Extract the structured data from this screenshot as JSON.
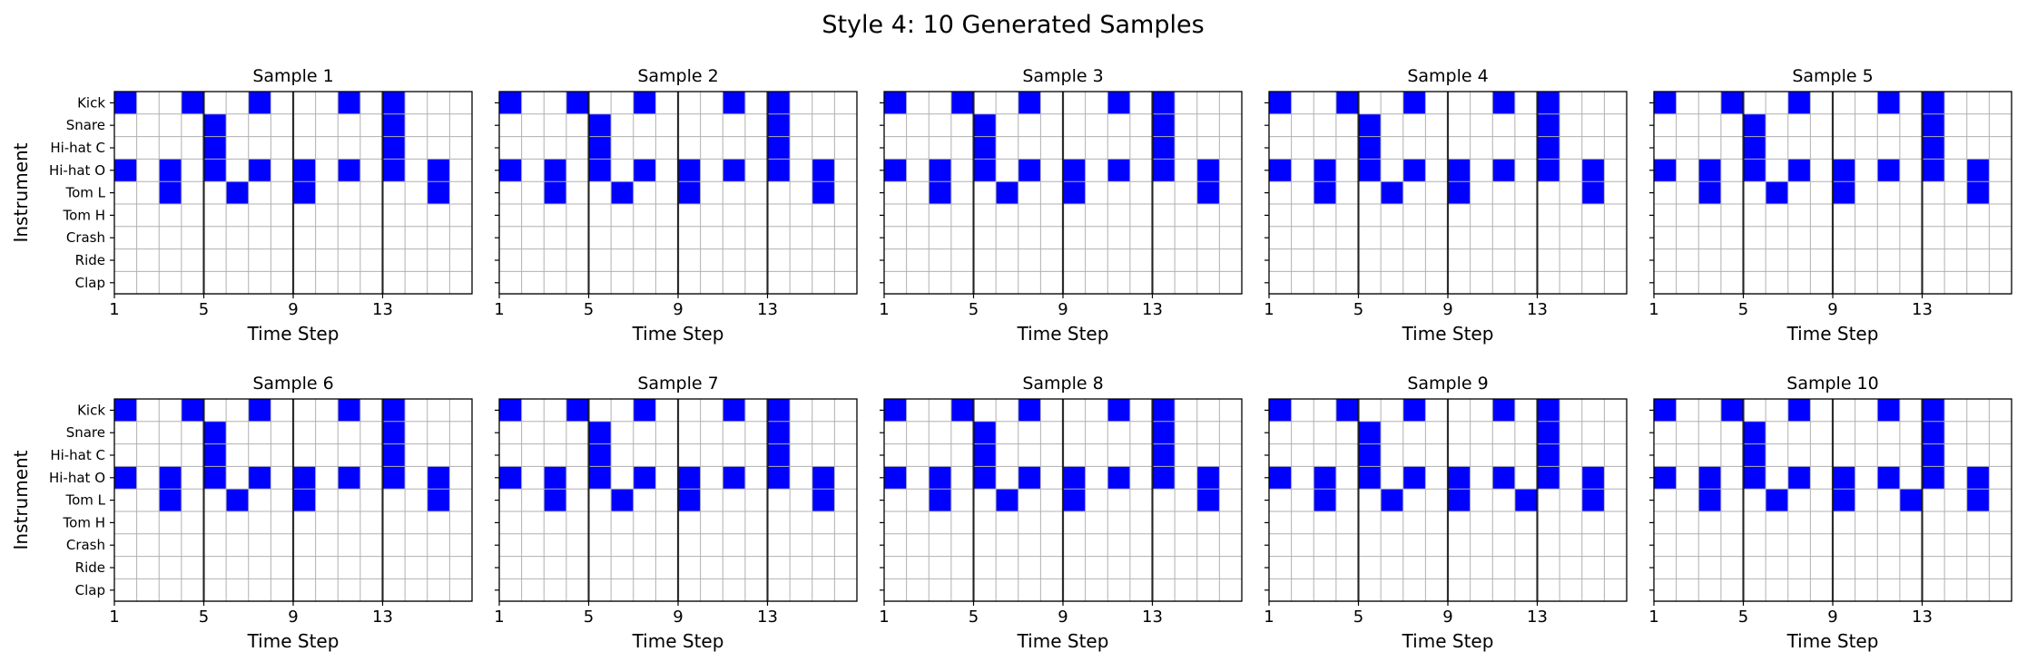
{
  "figure_title": "Style 4: 10 Generated Samples",
  "chart_data": {
    "type": "heatmap",
    "instruments": [
      "Kick",
      "Snare",
      "Hi-hat C",
      "Hi-hat O",
      "Tom L",
      "Tom H",
      "Crash",
      "Ride",
      "Clap"
    ],
    "x_ticks": [
      "1",
      "5",
      "9",
      "13"
    ],
    "steps": 16,
    "xlabel": "Time Step",
    "ylabel": "Instrument",
    "grid": true,
    "active_color": "#0000ff",
    "divider_steps": [
      5,
      9,
      13
    ],
    "note": "hits are [step, instrument_index]; step 1-16, instrument index 0=Kick .. 8=Clap",
    "samples": [
      {
        "title": "Sample 1",
        "hits": [
          [
            1,
            0
          ],
          [
            4,
            0
          ],
          [
            7,
            0
          ],
          [
            11,
            0
          ],
          [
            13,
            0
          ],
          [
            5,
            1
          ],
          [
            13,
            1
          ],
          [
            5,
            2
          ],
          [
            13,
            2
          ],
          [
            1,
            3
          ],
          [
            3,
            3
          ],
          [
            5,
            3
          ],
          [
            7,
            3
          ],
          [
            9,
            3
          ],
          [
            11,
            3
          ],
          [
            13,
            3
          ],
          [
            15,
            3
          ],
          [
            3,
            4
          ],
          [
            6,
            4
          ],
          [
            9,
            4
          ],
          [
            15,
            4
          ]
        ]
      },
      {
        "title": "Sample 2",
        "hits": [
          [
            1,
            0
          ],
          [
            4,
            0
          ],
          [
            7,
            0
          ],
          [
            11,
            0
          ],
          [
            13,
            0
          ],
          [
            5,
            1
          ],
          [
            13,
            1
          ],
          [
            5,
            2
          ],
          [
            13,
            2
          ],
          [
            1,
            3
          ],
          [
            3,
            3
          ],
          [
            5,
            3
          ],
          [
            7,
            3
          ],
          [
            9,
            3
          ],
          [
            11,
            3
          ],
          [
            13,
            3
          ],
          [
            15,
            3
          ],
          [
            3,
            4
          ],
          [
            6,
            4
          ],
          [
            9,
            4
          ],
          [
            15,
            4
          ]
        ]
      },
      {
        "title": "Sample 3",
        "hits": [
          [
            1,
            0
          ],
          [
            4,
            0
          ],
          [
            7,
            0
          ],
          [
            11,
            0
          ],
          [
            13,
            0
          ],
          [
            5,
            1
          ],
          [
            13,
            1
          ],
          [
            5,
            2
          ],
          [
            13,
            2
          ],
          [
            1,
            3
          ],
          [
            3,
            3
          ],
          [
            5,
            3
          ],
          [
            7,
            3
          ],
          [
            9,
            3
          ],
          [
            11,
            3
          ],
          [
            13,
            3
          ],
          [
            15,
            3
          ],
          [
            3,
            4
          ],
          [
            6,
            4
          ],
          [
            9,
            4
          ],
          [
            15,
            4
          ]
        ]
      },
      {
        "title": "Sample 4",
        "hits": [
          [
            1,
            0
          ],
          [
            4,
            0
          ],
          [
            7,
            0
          ],
          [
            11,
            0
          ],
          [
            13,
            0
          ],
          [
            5,
            1
          ],
          [
            13,
            1
          ],
          [
            5,
            2
          ],
          [
            13,
            2
          ],
          [
            1,
            3
          ],
          [
            3,
            3
          ],
          [
            5,
            3
          ],
          [
            7,
            3
          ],
          [
            9,
            3
          ],
          [
            11,
            3
          ],
          [
            13,
            3
          ],
          [
            15,
            3
          ],
          [
            3,
            4
          ],
          [
            6,
            4
          ],
          [
            9,
            4
          ],
          [
            15,
            4
          ]
        ]
      },
      {
        "title": "Sample 5",
        "hits": [
          [
            1,
            0
          ],
          [
            4,
            0
          ],
          [
            7,
            0
          ],
          [
            11,
            0
          ],
          [
            13,
            0
          ],
          [
            5,
            1
          ],
          [
            13,
            1
          ],
          [
            5,
            2
          ],
          [
            13,
            2
          ],
          [
            1,
            3
          ],
          [
            3,
            3
          ],
          [
            5,
            3
          ],
          [
            7,
            3
          ],
          [
            9,
            3
          ],
          [
            11,
            3
          ],
          [
            13,
            3
          ],
          [
            15,
            3
          ],
          [
            3,
            4
          ],
          [
            6,
            4
          ],
          [
            9,
            4
          ],
          [
            15,
            4
          ]
        ]
      },
      {
        "title": "Sample 6",
        "hits": [
          [
            1,
            0
          ],
          [
            4,
            0
          ],
          [
            7,
            0
          ],
          [
            11,
            0
          ],
          [
            13,
            0
          ],
          [
            5,
            1
          ],
          [
            13,
            1
          ],
          [
            5,
            2
          ],
          [
            13,
            2
          ],
          [
            1,
            3
          ],
          [
            3,
            3
          ],
          [
            5,
            3
          ],
          [
            7,
            3
          ],
          [
            9,
            3
          ],
          [
            11,
            3
          ],
          [
            13,
            3
          ],
          [
            15,
            3
          ],
          [
            3,
            4
          ],
          [
            6,
            4
          ],
          [
            9,
            4
          ],
          [
            15,
            4
          ]
        ]
      },
      {
        "title": "Sample 7",
        "hits": [
          [
            1,
            0
          ],
          [
            4,
            0
          ],
          [
            7,
            0
          ],
          [
            11,
            0
          ],
          [
            13,
            0
          ],
          [
            5,
            1
          ],
          [
            13,
            1
          ],
          [
            5,
            2
          ],
          [
            13,
            2
          ],
          [
            1,
            3
          ],
          [
            3,
            3
          ],
          [
            5,
            3
          ],
          [
            7,
            3
          ],
          [
            9,
            3
          ],
          [
            11,
            3
          ],
          [
            13,
            3
          ],
          [
            15,
            3
          ],
          [
            3,
            4
          ],
          [
            6,
            4
          ],
          [
            9,
            4
          ],
          [
            15,
            4
          ]
        ]
      },
      {
        "title": "Sample 8",
        "hits": [
          [
            1,
            0
          ],
          [
            4,
            0
          ],
          [
            7,
            0
          ],
          [
            11,
            0
          ],
          [
            13,
            0
          ],
          [
            5,
            1
          ],
          [
            13,
            1
          ],
          [
            5,
            2
          ],
          [
            13,
            2
          ],
          [
            1,
            3
          ],
          [
            3,
            3
          ],
          [
            5,
            3
          ],
          [
            7,
            3
          ],
          [
            9,
            3
          ],
          [
            11,
            3
          ],
          [
            13,
            3
          ],
          [
            15,
            3
          ],
          [
            3,
            4
          ],
          [
            6,
            4
          ],
          [
            9,
            4
          ],
          [
            15,
            4
          ]
        ]
      },
      {
        "title": "Sample 9",
        "hits": [
          [
            1,
            0
          ],
          [
            4,
            0
          ],
          [
            7,
            0
          ],
          [
            11,
            0
          ],
          [
            13,
            0
          ],
          [
            5,
            1
          ],
          [
            13,
            1
          ],
          [
            5,
            2
          ],
          [
            13,
            2
          ],
          [
            1,
            3
          ],
          [
            3,
            3
          ],
          [
            5,
            3
          ],
          [
            7,
            3
          ],
          [
            9,
            3
          ],
          [
            11,
            3
          ],
          [
            13,
            3
          ],
          [
            15,
            3
          ],
          [
            3,
            4
          ],
          [
            6,
            4
          ],
          [
            9,
            4
          ],
          [
            12,
            4
          ],
          [
            15,
            4
          ]
        ]
      },
      {
        "title": "Sample 10",
        "hits": [
          [
            1,
            0
          ],
          [
            4,
            0
          ],
          [
            7,
            0
          ],
          [
            11,
            0
          ],
          [
            13,
            0
          ],
          [
            5,
            1
          ],
          [
            13,
            1
          ],
          [
            5,
            2
          ],
          [
            13,
            2
          ],
          [
            1,
            3
          ],
          [
            3,
            3
          ],
          [
            5,
            3
          ],
          [
            7,
            3
          ],
          [
            9,
            3
          ],
          [
            11,
            3
          ],
          [
            13,
            3
          ],
          [
            15,
            3
          ],
          [
            3,
            4
          ],
          [
            6,
            4
          ],
          [
            9,
            4
          ],
          [
            12,
            4
          ],
          [
            15,
            4
          ]
        ]
      }
    ]
  }
}
